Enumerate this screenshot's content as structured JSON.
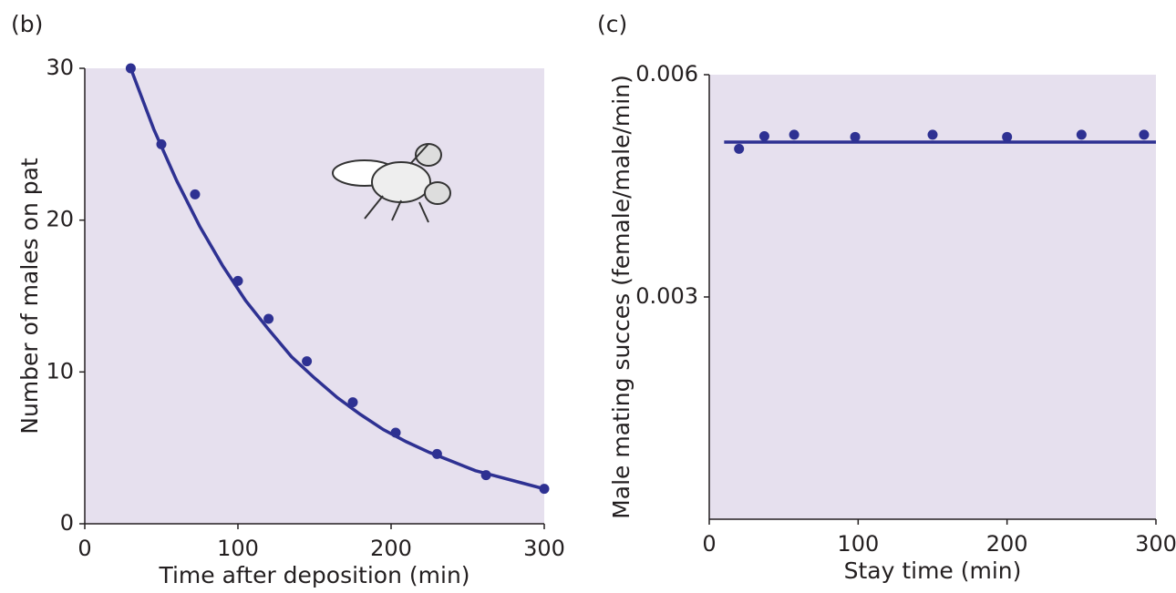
{
  "chart_data": [
    {
      "type": "scatter-fit",
      "panel_label": "(b)",
      "x_label": "Time after deposition (min)",
      "y_label": "Number of males on pat",
      "xlim": [
        0,
        300
      ],
      "ylim": [
        0,
        30
      ],
      "xticks": [
        0,
        100,
        200,
        300
      ],
      "yticks": [
        0,
        10,
        20,
        30
      ],
      "background": "#e6e0ee",
      "series": [
        {
          "kind": "points",
          "color": "#2e3192",
          "x": [
            30,
            50,
            72,
            100,
            120,
            145,
            175,
            203,
            230,
            262,
            300
          ],
          "values": [
            30,
            25,
            21.7,
            16,
            13.5,
            10.7,
            8,
            6,
            4.6,
            3.2,
            2.3
          ]
        },
        {
          "kind": "curve",
          "color": "#2e3192",
          "x": [
            30,
            45,
            60,
            75,
            90,
            105,
            120,
            135,
            150,
            165,
            180,
            195,
            210,
            225,
            240,
            255,
            270,
            285,
            300
          ],
          "values": [
            30,
            26.0,
            22.6,
            19.6,
            17.0,
            14.7,
            12.8,
            11.0,
            9.6,
            8.3,
            7.2,
            6.2,
            5.4,
            4.7,
            4.1,
            3.5,
            3.1,
            2.7,
            2.3
          ]
        }
      ]
    },
    {
      "type": "scatter-fit",
      "panel_label": "(c)",
      "x_label": "Stay time (min)",
      "y_label": "Male mating succes (female/male/min)",
      "xlim": [
        0,
        300
      ],
      "ylim": [
        0,
        0.006
      ],
      "xticks": [
        0,
        100,
        200,
        300
      ],
      "yticks": [
        0.003,
        0.006
      ],
      "background": "#e6e0ee",
      "series": [
        {
          "kind": "points",
          "color": "#2e3192",
          "x": [
            20,
            37,
            57,
            98,
            150,
            200,
            250,
            292
          ],
          "values": [
            0.005,
            0.00517,
            0.00519,
            0.00516,
            0.00519,
            0.00516,
            0.00519,
            0.00519
          ]
        },
        {
          "kind": "curve",
          "color": "#2e3192",
          "x": [
            10,
            300
          ],
          "values": [
            0.00509,
            0.00509
          ]
        }
      ]
    }
  ]
}
